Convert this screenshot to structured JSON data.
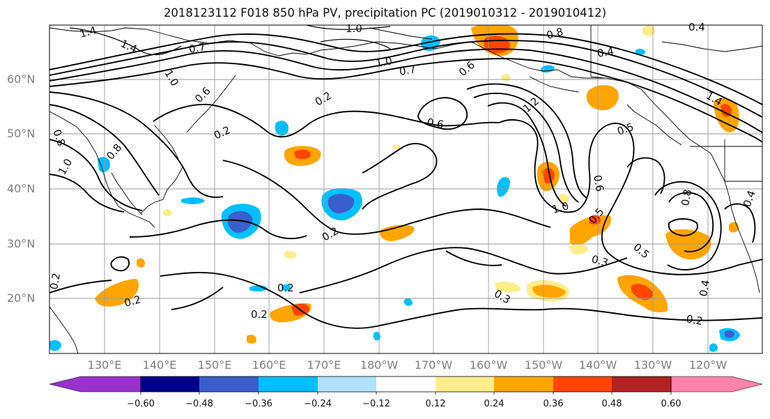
{
  "title": "2018123112 F018 850 hPa PV, precipitation PC (2019010312 - 2019010412)",
  "lat_labels": [
    "60°N",
    "50°N",
    "40°N",
    "30°N",
    "20°N"
  ],
  "lon_labels": [
    "130°E",
    "140°E",
    "150°E",
    "160°E",
    "170°E",
    "180°W",
    "170°W",
    "160°W",
    "150°W",
    "140°W",
    "130°W",
    "120°W"
  ],
  "colorbar": {
    "ticks": [
      "−0.60",
      "−0.48",
      "−0.36",
      "−0.24",
      "−0.12",
      "0.12",
      "0.24",
      "0.36",
      "0.48",
      "0.60"
    ],
    "colors": [
      "#9932cc",
      "#00008b",
      "#3a5fcd",
      "#00bfff",
      "#b0e2ff",
      "#ffffff",
      "#ffec8b",
      "#ffa500",
      "#ff4500",
      "#b22222",
      "#ff82ab"
    ]
  },
  "contour_labels": [
    "1.4",
    "1.4",
    "1.0",
    "0.7",
    "1.0",
    "0.6",
    "0.8",
    "0.8",
    "1.0",
    "0.2",
    "0.2",
    "0.2",
    "0.2",
    "0.2",
    "0.2",
    "0.8",
    "0.4",
    "0.7",
    "0.6",
    "0.6",
    "1.2",
    "0.5",
    "0.6",
    "1.0",
    "0.5",
    "0.5",
    "0.3",
    "0.3",
    "0.8",
    "0.4",
    "0.4",
    "0.2",
    "1.4",
    "1.0",
    "0.4",
    "0.2"
  ]
}
